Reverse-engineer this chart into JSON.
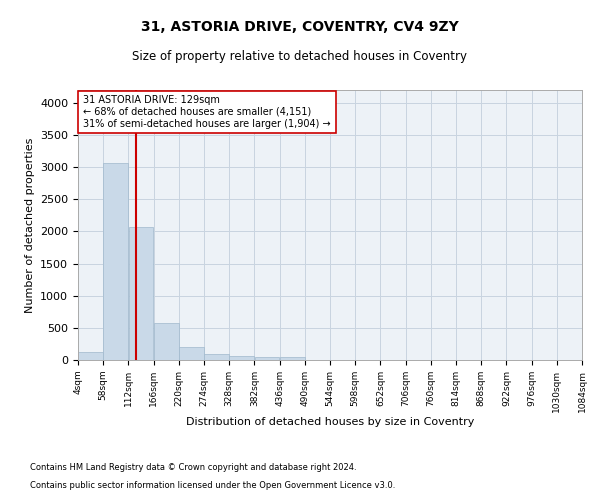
{
  "title1": "31, ASTORIA DRIVE, COVENTRY, CV4 9ZY",
  "title2": "Size of property relative to detached houses in Coventry",
  "xlabel": "Distribution of detached houses by size in Coventry",
  "ylabel": "Number of detached properties",
  "footnote1": "Contains HM Land Registry data © Crown copyright and database right 2024.",
  "footnote2": "Contains public sector information licensed under the Open Government Licence v3.0.",
  "property_size": 129,
  "property_label": "31 ASTORIA DRIVE: 129sqm",
  "annotation_line1": "← 68% of detached houses are smaller (4,151)",
  "annotation_line2": "31% of semi-detached houses are larger (1,904) →",
  "bar_color": "#c9d9e8",
  "bar_edge_color": "#a0b8cc",
  "vline_color": "#cc0000",
  "annotation_box_color": "#cc0000",
  "grid_color": "#c8d4e0",
  "bg_color": "#edf2f7",
  "bin_edges": [
    4,
    58,
    112,
    166,
    220,
    274,
    328,
    382,
    436,
    490,
    544,
    598,
    652,
    706,
    760,
    814,
    868,
    922,
    976,
    1030,
    1084
  ],
  "bar_heights": [
    130,
    3060,
    2070,
    570,
    205,
    95,
    60,
    50,
    45,
    0,
    0,
    0,
    0,
    0,
    0,
    0,
    0,
    0,
    0,
    0
  ],
  "ylim": [
    0,
    4200
  ],
  "yticks": [
    0,
    500,
    1000,
    1500,
    2000,
    2500,
    3000,
    3500,
    4000
  ]
}
